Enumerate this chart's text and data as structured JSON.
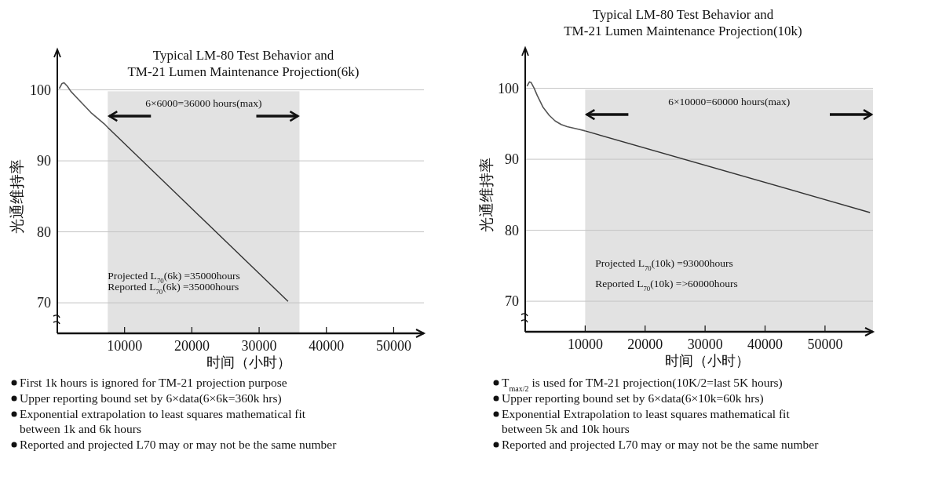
{
  "chart_data": [
    {
      "type": "line",
      "title": "Typical LM-80 Test Behavior and\nTM-21 Lumen Maintenance Projection(6k)",
      "xlabel": "时间（小时）",
      "ylabel": "光通维持率",
      "series": [
        {
          "color": "#555555",
          "x": [
            300,
            700,
            1000,
            1500,
            2000,
            3000,
            4000,
            5000,
            6000,
            7000,
            7500
          ],
          "values": [
            100.2,
            100.9,
            101,
            100.5,
            99.8,
            98.8,
            97.8,
            96.8,
            96.0,
            95.2,
            94.7
          ]
        },
        {
          "color": "#333333",
          "x": [
            7500,
            34300
          ],
          "values": [
            94.7,
            70.2
          ]
        }
      ],
      "xlim": [
        0,
        54500
      ],
      "xticks": [
        10000,
        20000,
        30000,
        40000,
        50000
      ],
      "ylim": [
        65.7,
        105.7
      ],
      "yticks": [
        70,
        80,
        90,
        100
      ],
      "grid": "y",
      "bands": [
        {
          "axis": "x",
          "from": 7500,
          "to": 36000,
          "color": "#e2e2e2"
        }
      ],
      "annotations": [
        {
          "text": "6×6000=36000 hours(max)",
          "x": 36000,
          "y": 96.3
        },
        "Projected L$_{70}$(6k) =35000hours",
        "Reported L$_{70}$(6k) =35000hours",
        "First 1k hours is ignored for TM-21 projection purpose",
        "Upper reporting bound set by 6×data(6×6k=360k hrs)",
        "Exponential extrapolation to least squares mathematical fit between 1k and 6k hours",
        "Reported and projected L70 may or may not be the same number"
      ]
    },
    {
      "type": "line",
      "title": "Typical LM-80 Test Behavior and\nTM-21 Lumen Maintenance Projection(10k)",
      "xlabel": "时间（小时）",
      "ylabel": "光通维持率",
      "series": [
        {
          "color": "#555555",
          "x": [
            300,
            700,
            1000,
            1500,
            2000,
            3000,
            4000,
            5000,
            6000,
            7000,
            8000,
            9000,
            10000
          ],
          "values": [
            100.3,
            100.9,
            100.8,
            100,
            99,
            97.3,
            96.2,
            95.4,
            94.9,
            94.6,
            94.4,
            94.2,
            94.0
          ]
        },
        {
          "color": "#333333",
          "x": [
            10000,
            57500
          ],
          "values": [
            94.0,
            82.5
          ]
        }
      ],
      "xlim": [
        0,
        58000
      ],
      "xticks": [
        10000,
        20000,
        30000,
        40000,
        50000
      ],
      "ylim": [
        65.7,
        105.7
      ],
      "yticks": [
        70,
        80,
        90,
        100
      ],
      "grid": "y",
      "bands": [
        {
          "axis": "x",
          "from": 10000,
          "to": 58000,
          "color": "#e2e2e2"
        }
      ],
      "annotations": [
        "6×10000=60000 hours(max)",
        "Projected L$_{70}$(10k) =93000hours",
        "Reported L$_{70}$(10k) =>60000hours",
        "T$_{max/2}$ is used for TM-21 projection(10K/2=last 5K hours)",
        "Upper reporting bound set by 6×data(6×10k=60k hrs)",
        "Exponential Extrapolation to least squares mathematical fit between 5k and 10k hours",
        "Reported and projected L70 may or may not be the same number"
      ]
    }
  ]
}
